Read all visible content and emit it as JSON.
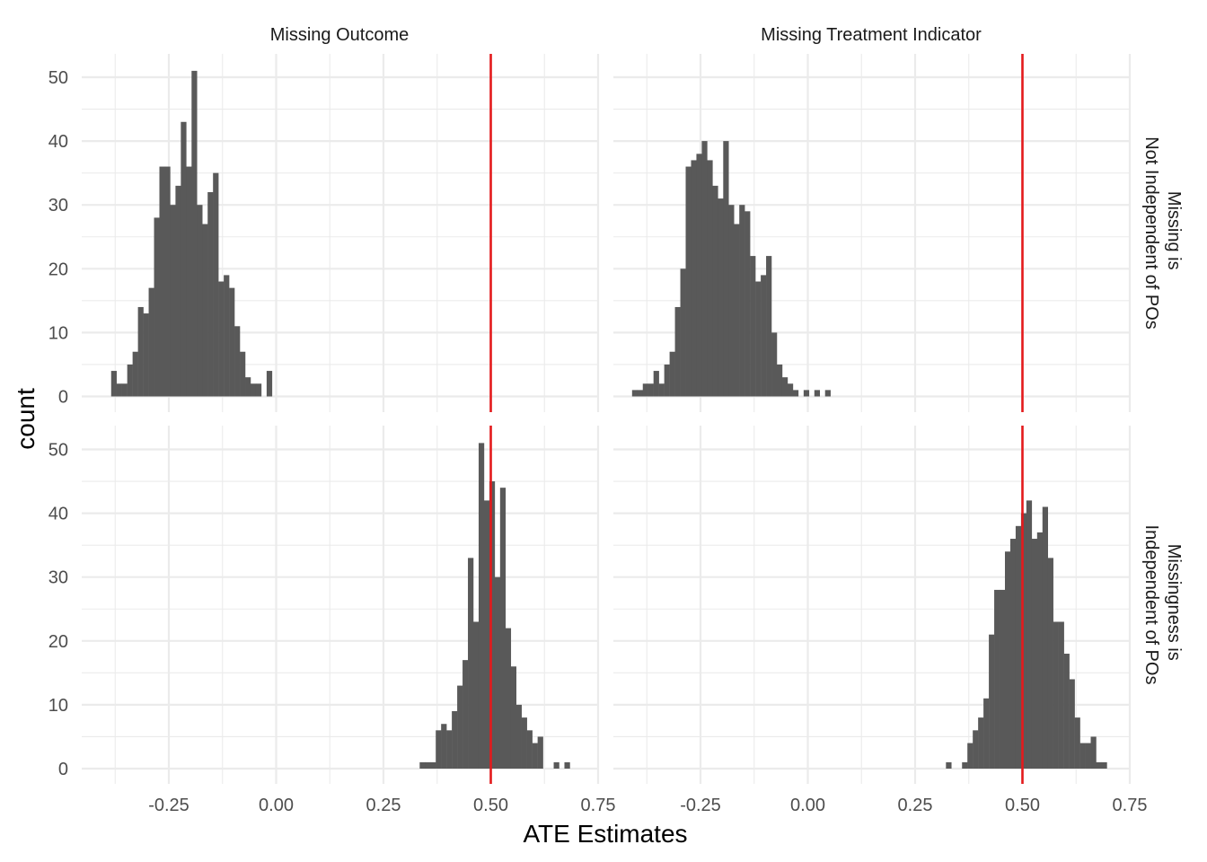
{
  "chart_data": {
    "type": "bar",
    "subtype": "faceted-histogram",
    "xlabel": "ATE Estimates",
    "ylabel": "count",
    "xlim": [
      -0.42,
      0.76
    ],
    "ylim": [
      0,
      53
    ],
    "x_ticks": [
      -0.25,
      0.0,
      0.25,
      0.5,
      0.75
    ],
    "x_tick_labels": [
      "-0.25",
      "0.00",
      "0.25",
      "0.50",
      "0.75"
    ],
    "y_ticks": [
      0,
      10,
      20,
      30,
      40,
      50
    ],
    "y_tick_labels": [
      "0",
      "10",
      "20",
      "30",
      "40",
      "50"
    ],
    "grid": true,
    "reference_line": {
      "x": 0.5,
      "color": "#e41a1c"
    },
    "bar_color": "#595959",
    "bin_width": 0.01249,
    "facet_cols": [
      "Missing Outcome",
      "Missing Treatment Indicator"
    ],
    "facet_rows": [
      [
        "Missing is",
        "Not Independent of POs"
      ],
      [
        "Missingness is",
        "Independent of POs"
      ]
    ],
    "panels": [
      {
        "row": 0,
        "col": 0,
        "bins_start": -0.3844,
        "counts": [
          4,
          2,
          2,
          5,
          7,
          14,
          13,
          17,
          28,
          36,
          36,
          30,
          33,
          43,
          36,
          51,
          30,
          27,
          32,
          35,
          18,
          19,
          17,
          11,
          7,
          3,
          2,
          2,
          0,
          4
        ]
      },
      {
        "row": 0,
        "col": 1,
        "bins_start": -0.4094,
        "counts": [
          1,
          1,
          2,
          2,
          4,
          2,
          5,
          7,
          14,
          20,
          36,
          37,
          38,
          40,
          37,
          33,
          31,
          40,
          30,
          27,
          30,
          29,
          22,
          18,
          19,
          22,
          10,
          5,
          3,
          2,
          1,
          0,
          1,
          0,
          1,
          0,
          1
        ]
      },
      {
        "row": 1,
        "col": 0,
        "bins_start": 0.3343,
        "counts": [
          1,
          1,
          1,
          6,
          7,
          6,
          9,
          13,
          17,
          33,
          23,
          51,
          42,
          45,
          30,
          44,
          22,
          16,
          10,
          8,
          6,
          4,
          5,
          0,
          0,
          1,
          0,
          1
        ]
      },
      {
        "row": 1,
        "col": 1,
        "bins_start": 0.3218,
        "counts": [
          1,
          0,
          0,
          1,
          4,
          6,
          8,
          11,
          21,
          28,
          28,
          34,
          36,
          38,
          40,
          42,
          36,
          37,
          41,
          33,
          23,
          23,
          18,
          14,
          8,
          4,
          4,
          5,
          1,
          1
        ]
      }
    ]
  }
}
